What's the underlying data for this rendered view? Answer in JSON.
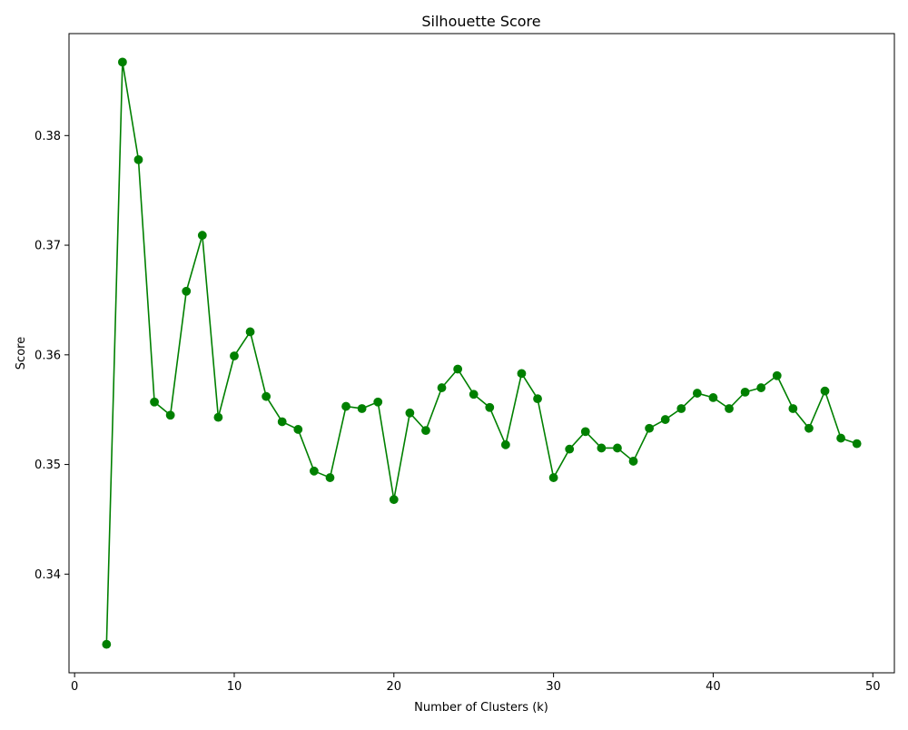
{
  "chart_data": {
    "type": "line",
    "title": "Silhouette Score",
    "xlabel": "Number of Clusters (k)",
    "ylabel": "Score",
    "xlim": [
      -0.35,
      51.35
    ],
    "ylim": [
      0.331,
      0.3893
    ],
    "xticks": [
      0,
      10,
      20,
      30,
      40,
      50
    ],
    "xtick_labels": [
      "0",
      "10",
      "20",
      "30",
      "40",
      "50"
    ],
    "yticks": [
      0.34,
      0.35,
      0.36,
      0.37,
      0.38
    ],
    "ytick_labels": [
      "0.34",
      "0.35",
      "0.36",
      "0.37",
      "0.38"
    ],
    "grid": false,
    "legend": "none",
    "series": [
      {
        "color": "#008000",
        "marker": "circle",
        "x": [
          2,
          3,
          4,
          5,
          6,
          7,
          8,
          9,
          10,
          11,
          12,
          13,
          14,
          15,
          16,
          17,
          18,
          19,
          20,
          21,
          22,
          23,
          24,
          25,
          26,
          27,
          28,
          29,
          30,
          31,
          32,
          33,
          34,
          35,
          36,
          37,
          38,
          39,
          40,
          41,
          42,
          43,
          44,
          45,
          46,
          47,
          48,
          49
        ],
        "y": [
          0.3336,
          0.3867,
          0.3778,
          0.3557,
          0.3545,
          0.3658,
          0.3709,
          0.3543,
          0.3599,
          0.3621,
          0.3562,
          0.3539,
          0.3532,
          0.3494,
          0.3488,
          0.3553,
          0.3551,
          0.3557,
          0.3468,
          0.3547,
          0.3531,
          0.357,
          0.3587,
          0.3564,
          0.3552,
          0.3518,
          0.3583,
          0.356,
          0.3488,
          0.3514,
          0.353,
          0.3515,
          0.3515,
          0.3503,
          0.3533,
          0.3541,
          0.3551,
          0.3565,
          0.3561,
          0.3551,
          0.3566,
          0.357,
          0.3581,
          0.3551,
          0.3533,
          0.3567,
          0.3524,
          0.3519
        ]
      }
    ]
  }
}
